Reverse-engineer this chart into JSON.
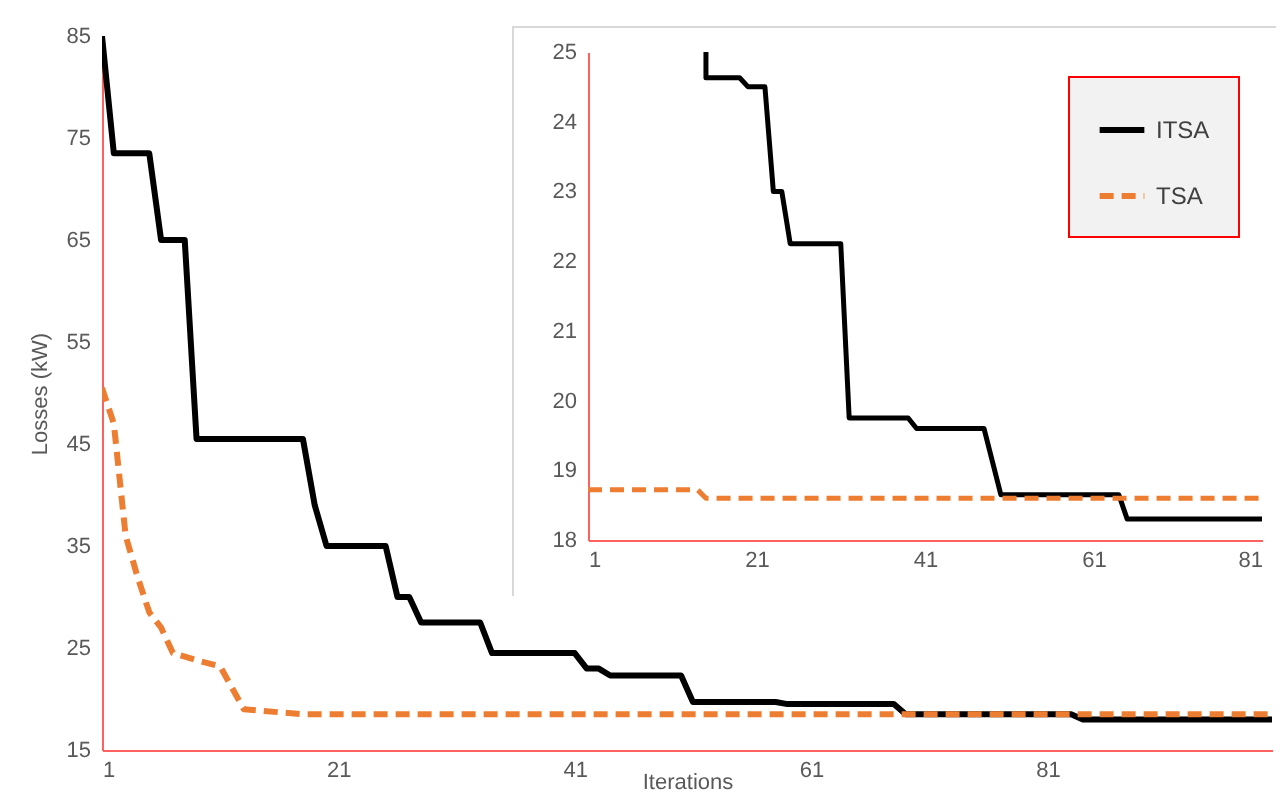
{
  "chart_data": [
    {
      "type": "line",
      "xlabel": "Iterations",
      "ylabel": "Losses (kW)",
      "xlim": [
        1,
        100
      ],
      "xticks": [
        1,
        21,
        41,
        61,
        81
      ],
      "ylim": [
        15,
        85
      ],
      "yticks": [
        15,
        25,
        35,
        45,
        55,
        65,
        75,
        85
      ],
      "grid": false,
      "legend": false,
      "series": [
        {
          "color": "#000000",
          "line_style": "solid",
          "x": [
            1,
            2,
            5,
            6,
            8,
            9,
            18,
            19,
            20,
            25,
            26,
            27,
            28,
            33,
            34,
            41,
            42,
            43,
            44,
            50,
            51,
            58,
            59,
            68,
            69,
            83,
            84,
            100
          ],
          "values": [
            85,
            73.5,
            73.5,
            65,
            65,
            45.5,
            45.5,
            39,
            35,
            35,
            30,
            30,
            27.5,
            27.5,
            24.5,
            24.5,
            23,
            23,
            22.3,
            22.3,
            19.7,
            19.7,
            19.5,
            19.5,
            18.5,
            18.5,
            18,
            18
          ]
        },
        {
          "color": "#ed7d31",
          "line_style": "dashed",
          "x": [
            1,
            2,
            3,
            4,
            5,
            6,
            7,
            9,
            11,
            13,
            18,
            100
          ],
          "values": [
            50.5,
            47,
            36,
            32,
            28.5,
            27,
            24.5,
            23.8,
            23.2,
            19,
            18.5,
            18.5
          ]
        }
      ]
    },
    {
      "type": "line",
      "xlim": [
        1,
        81
      ],
      "xticks": [
        1,
        21,
        41,
        61,
        81
      ],
      "ylim": [
        18,
        25
      ],
      "yticks": [
        18,
        19,
        20,
        21,
        22,
        23,
        24,
        25
      ],
      "grid": false,
      "legend": "top right",
      "series": [
        {
          "name": "ITSA",
          "color": "#000000",
          "line_style": "solid",
          "x": [
            15,
            15,
            19,
            20,
            22,
            23,
            24,
            25,
            31,
            32,
            39,
            40,
            48,
            50,
            64,
            65,
            81
          ],
          "values": [
            25,
            24.63,
            24.63,
            24.5,
            24.5,
            23,
            23,
            22.25,
            22.25,
            19.75,
            19.75,
            19.6,
            19.6,
            18.65,
            18.65,
            18.3,
            18.3
          ]
        },
        {
          "name": "TSA",
          "color": "#ed7d31",
          "line_style": "dashed",
          "x": [
            1,
            14,
            15,
            81
          ],
          "values": [
            18.72,
            18.72,
            18.6,
            18.6
          ]
        }
      ]
    }
  ]
}
